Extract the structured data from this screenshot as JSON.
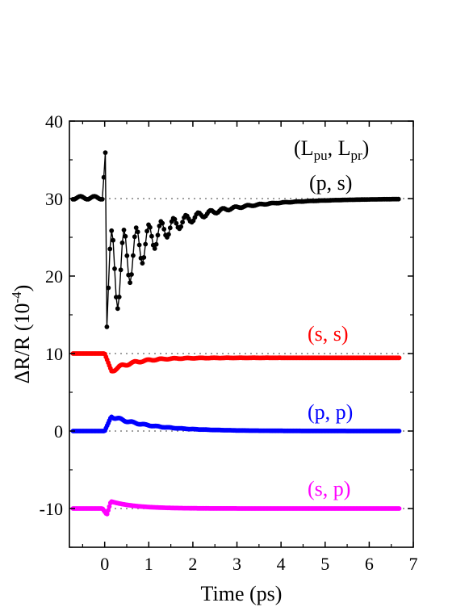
{
  "chart_data": {
    "type": "line",
    "xlabel": "Time (ps)",
    "ylabel_main": "ΔR/R (10",
    "ylabel_exp": "-4",
    "ylabel_close": ")",
    "xlim": [
      -0.8,
      7
    ],
    "ylim": [
      -15,
      40
    ],
    "xticks": [
      "0",
      "1",
      "2",
      "3",
      "4",
      "5",
      "6",
      "7"
    ],
    "yticks": [
      "-10",
      "0",
      "10",
      "20",
      "30",
      "40"
    ],
    "legend_title": {
      "L": "L",
      "pu": "pu",
      "sep": ", ",
      "pr": "pr",
      "open": "(",
      "close": ")"
    },
    "reference_lines": [
      30,
      10,
      0,
      -10
    ],
    "series": [
      {
        "name": "(p, s)",
        "color": "#000000",
        "offset": 30
      },
      {
        "name": "(s, s)",
        "color": "#ff0000",
        "offset": 10
      },
      {
        "name": "(p, p)",
        "color": "#0000ff",
        "offset": 0
      },
      {
        "name": "(s, p)",
        "color": "#ff00ff",
        "offset": -10
      }
    ]
  }
}
